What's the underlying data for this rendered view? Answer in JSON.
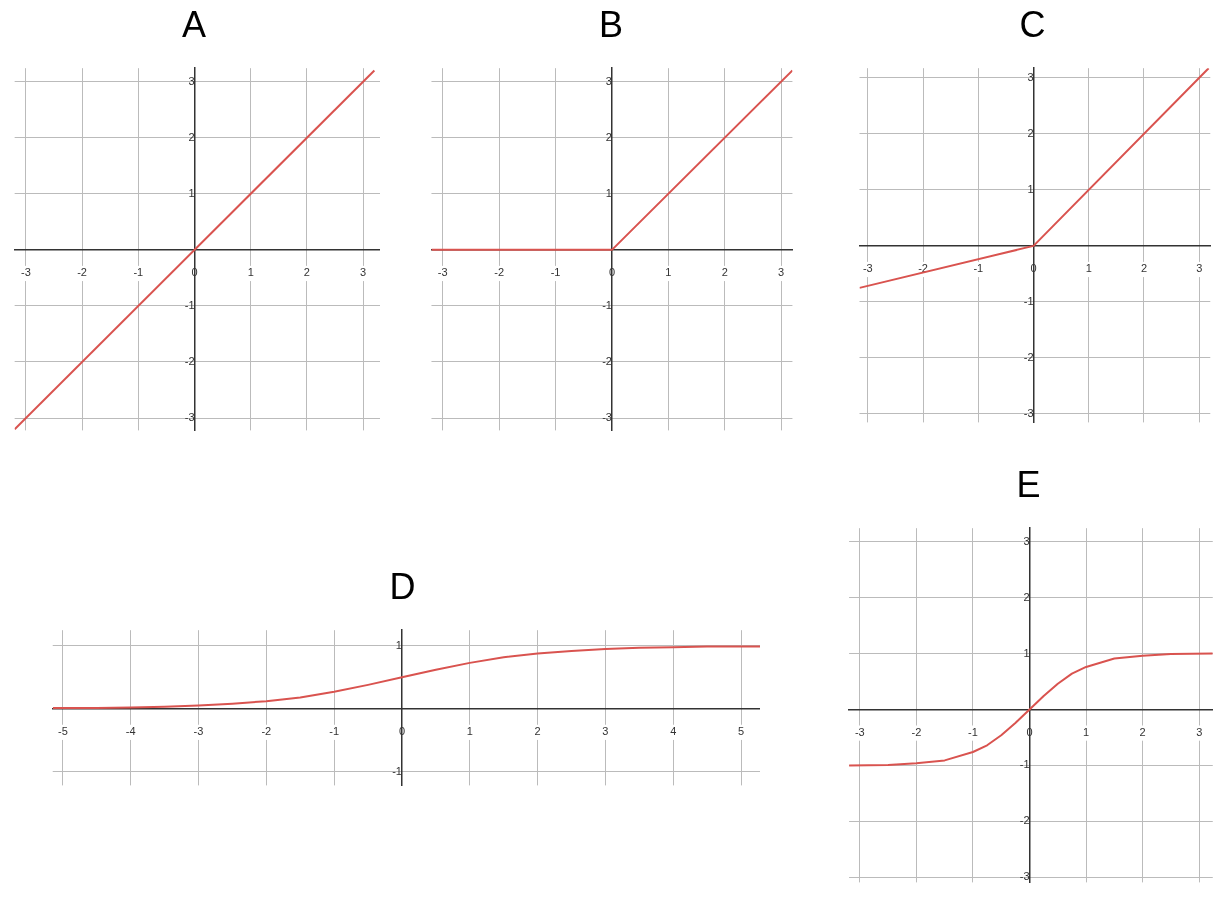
{
  "chart_data": [
    {
      "type": "line",
      "title": "A",
      "x": [
        -3.2,
        3.2
      ],
      "values": [
        -3.2,
        3.2
      ],
      "color": "#d9534f",
      "xlim": [
        -3.2,
        3.3
      ],
      "ylim": [
        -3.22,
        3.24
      ],
      "xticks": [
        -3,
        -2,
        -1,
        0,
        1,
        2,
        3
      ],
      "yticks": [
        -3,
        -2,
        -1,
        1,
        2,
        3
      ],
      "grid": true,
      "marker": "none"
    },
    {
      "type": "line",
      "title": "B",
      "x": [
        -3.2,
        0,
        3.2
      ],
      "values": [
        0,
        0,
        3.2
      ],
      "color": "#d9534f",
      "xlim": [
        -3.2,
        3.2
      ],
      "ylim": [
        -3.22,
        3.24
      ],
      "xticks": [
        -3,
        -2,
        -1,
        0,
        1,
        2,
        3
      ],
      "yticks": [
        -3,
        -2,
        -1,
        1,
        2,
        3
      ],
      "grid": true,
      "marker": "none"
    },
    {
      "type": "line",
      "title": "C",
      "x": [
        -3.15,
        0,
        3.17
      ],
      "values": [
        -0.75,
        0,
        3.17
      ],
      "color": "#d9534f",
      "xlim": [
        -3.15,
        3.2
      ],
      "ylim": [
        -3.15,
        3.17
      ],
      "xticks": [
        -3,
        -2,
        -1,
        0,
        1,
        2,
        3
      ],
      "yticks": [
        -3,
        -2,
        -1,
        1,
        2,
        3
      ],
      "grid": true,
      "marker": "none"
    },
    {
      "type": "line",
      "title": "D",
      "x": [
        -5.15,
        -4.5,
        -4,
        -3.5,
        -3,
        -2.5,
        -2,
        -1.5,
        -1,
        -0.5,
        0,
        0.5,
        1,
        1.5,
        2,
        2.5,
        3,
        3.5,
        4,
        4.5,
        5,
        5.28
      ],
      "values": [
        0.01,
        0.01,
        0.02,
        0.03,
        0.05,
        0.08,
        0.12,
        0.18,
        0.27,
        0.38,
        0.5,
        0.62,
        0.73,
        0.82,
        0.88,
        0.92,
        0.95,
        0.97,
        0.98,
        0.99,
        0.99,
        0.99
      ],
      "color": "#d9534f",
      "xlim": [
        -5.15,
        5.28
      ],
      "ylim": [
        -1.22,
        1.25
      ],
      "xticks": [
        -5,
        -4,
        -3,
        -2,
        -1,
        0,
        1,
        2,
        3,
        4,
        5
      ],
      "yticks": [
        -1,
        1
      ],
      "grid": true,
      "marker": "none"
    },
    {
      "type": "line",
      "title": "E",
      "x": [
        -3.19,
        -2.5,
        -2,
        -1.5,
        -1,
        -0.75,
        -0.5,
        -0.25,
        0,
        0.25,
        0.5,
        0.75,
        1,
        1.5,
        2,
        2.5,
        3.24
      ],
      "values": [
        -1,
        -0.99,
        -0.96,
        -0.91,
        -0.76,
        -0.64,
        -0.46,
        -0.24,
        0,
        0.24,
        0.46,
        0.64,
        0.76,
        0.91,
        0.96,
        0.99,
        1
      ],
      "color": "#d9534f",
      "xlim": [
        -3.19,
        3.24
      ],
      "ylim": [
        -3.09,
        3.24
      ],
      "xticks": [
        -3,
        -2,
        -1,
        0,
        1,
        2,
        3
      ],
      "yticks": [
        -3,
        -2,
        -1,
        1,
        2,
        3
      ],
      "grid": true,
      "marker": "none"
    }
  ]
}
